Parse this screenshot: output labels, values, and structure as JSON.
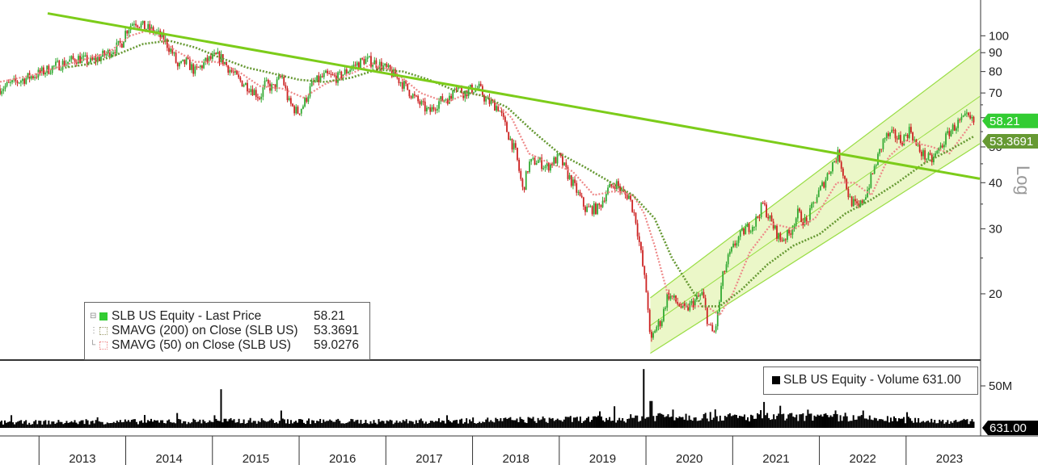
{
  "chart_data": [
    {
      "type": "candlestick",
      "title": "",
      "y_scale": "log",
      "ylim": [
        13.5,
        125
      ],
      "y_ticks": [
        "20",
        "30",
        "40",
        "50",
        "60",
        "70",
        "80",
        "90",
        "100"
      ],
      "x_ticks": [
        "2013",
        "2014",
        "2015",
        "2016",
        "2017",
        "2018",
        "2019",
        "2020",
        "2021",
        "2022",
        "2023"
      ],
      "xlim": [
        2012.55,
        2023.85
      ],
      "axis_watermark": "Log",
      "legend_position": "bottom-left",
      "series": [
        {
          "name": "SLB US Equity - Last Price",
          "last_value": "58.21",
          "color": "#33cc33",
          "anchors": [
            [
              2012.55,
              72
            ],
            [
              2012.8,
              76
            ],
            [
              2013.0,
              79
            ],
            [
              2013.2,
              83
            ],
            [
              2013.45,
              87
            ],
            [
              2013.6,
              85
            ],
            [
              2013.8,
              90
            ],
            [
              2013.95,
              95
            ],
            [
              2014.0,
              103
            ],
            [
              2014.1,
              110
            ],
            [
              2014.2,
              106
            ],
            [
              2014.35,
              102
            ],
            [
              2014.45,
              97
            ],
            [
              2014.55,
              89
            ],
            [
              2014.6,
              82
            ],
            [
              2014.7,
              85
            ],
            [
              2014.8,
              80
            ],
            [
              2014.95,
              86
            ],
            [
              2015.05,
              88
            ],
            [
              2015.1,
              87
            ],
            [
              2015.2,
              81
            ],
            [
              2015.3,
              76
            ],
            [
              2015.45,
              72
            ],
            [
              2015.55,
              68
            ],
            [
              2015.6,
              74
            ],
            [
              2015.7,
              72
            ],
            [
              2015.8,
              78
            ],
            [
              2015.88,
              66
            ],
            [
              2015.98,
              62
            ],
            [
              2016.05,
              65
            ],
            [
              2016.15,
              74
            ],
            [
              2016.3,
              78
            ],
            [
              2016.45,
              77
            ],
            [
              2016.6,
              82
            ],
            [
              2016.75,
              86
            ],
            [
              2016.85,
              85
            ],
            [
              2016.95,
              83
            ],
            [
              2017.05,
              80
            ],
            [
              2017.2,
              74
            ],
            [
              2017.35,
              67
            ],
            [
              2017.5,
              62
            ],
            [
              2017.6,
              66
            ],
            [
              2017.7,
              68
            ],
            [
              2017.75,
              67
            ],
            [
              2017.78,
              75
            ],
            [
              2017.82,
              73
            ],
            [
              2017.9,
              70
            ],
            [
              2018.0,
              72
            ],
            [
              2018.08,
              72
            ],
            [
              2018.15,
              67
            ],
            [
              2018.3,
              64
            ],
            [
              2018.4,
              55
            ],
            [
              2018.5,
              48
            ],
            [
              2018.58,
              38
            ],
            [
              2018.65,
              45
            ],
            [
              2018.75,
              46
            ],
            [
              2018.85,
              44
            ],
            [
              2019.0,
              47
            ],
            [
              2019.1,
              42
            ],
            [
              2019.2,
              38
            ],
            [
              2019.3,
              34
            ],
            [
              2019.45,
              34
            ],
            [
              2019.55,
              38
            ],
            [
              2019.65,
              40
            ],
            [
              2019.75,
              37
            ],
            [
              2019.8,
              37
            ],
            [
              2019.88,
              32
            ],
            [
              2019.95,
              25
            ],
            [
              2020.02,
              19
            ],
            [
              2020.05,
              14.5
            ],
            [
              2020.1,
              16
            ],
            [
              2020.18,
              17
            ],
            [
              2020.25,
              20
            ],
            [
              2020.35,
              19
            ],
            [
              2020.45,
              18
            ],
            [
              2020.55,
              19
            ],
            [
              2020.65,
              20
            ],
            [
              2020.72,
              16.5
            ],
            [
              2020.78,
              15.5
            ],
            [
              2020.82,
              17
            ],
            [
              2020.88,
              22
            ],
            [
              2020.95,
              25
            ],
            [
              2021.05,
              28
            ],
            [
              2021.15,
              30
            ],
            [
              2021.25,
              31
            ],
            [
              2021.35,
              35
            ],
            [
              2021.45,
              31
            ],
            [
              2021.55,
              28
            ],
            [
              2021.65,
              29
            ],
            [
              2021.75,
              33
            ],
            [
              2021.85,
              31
            ],
            [
              2021.95,
              36
            ],
            [
              2022.05,
              40
            ],
            [
              2022.15,
              45
            ],
            [
              2022.22,
              48
            ],
            [
              2022.28,
              42
            ],
            [
              2022.35,
              36
            ],
            [
              2022.45,
              34
            ],
            [
              2022.55,
              38
            ],
            [
              2022.65,
              45
            ],
            [
              2022.75,
              53
            ],
            [
              2022.85,
              54
            ],
            [
              2022.95,
              52
            ],
            [
              2023.05,
              56
            ],
            [
              2023.12,
              50
            ],
            [
              2023.22,
              47
            ],
            [
              2023.3,
              46
            ],
            [
              2023.4,
              50
            ],
            [
              2023.5,
              55
            ],
            [
              2023.6,
              58
            ],
            [
              2023.7,
              60
            ],
            [
              2023.78,
              58.21
            ]
          ]
        },
        {
          "name": "SMAVG (200) on Close (SLB US)",
          "last_value": "53.3691",
          "color": "#669933",
          "anchors": [
            [
              2013.3,
              82
            ],
            [
              2013.6,
              84
            ],
            [
              2013.9,
              89
            ],
            [
              2014.2,
              95
            ],
            [
              2014.5,
              97
            ],
            [
              2014.8,
              93
            ],
            [
              2015.1,
              87
            ],
            [
              2015.4,
              82
            ],
            [
              2015.7,
              79
            ],
            [
              2016.0,
              76
            ],
            [
              2016.3,
              75
            ],
            [
              2016.6,
              77
            ],
            [
              2016.9,
              81
            ],
            [
              2017.2,
              80
            ],
            [
              2017.5,
              76
            ],
            [
              2017.8,
              71
            ],
            [
              2018.1,
              69
            ],
            [
              2018.4,
              64
            ],
            [
              2018.7,
              55
            ],
            [
              2019.0,
              48
            ],
            [
              2019.3,
              44
            ],
            [
              2019.6,
              40
            ],
            [
              2019.85,
              37
            ],
            [
              2020.1,
              32
            ],
            [
              2020.3,
              25
            ],
            [
              2020.5,
              21
            ],
            [
              2020.65,
              18.5
            ],
            [
              2020.85,
              18.5
            ],
            [
              2021.1,
              20.5
            ],
            [
              2021.4,
              24
            ],
            [
              2021.7,
              27
            ],
            [
              2022.0,
              29
            ],
            [
              2022.3,
              33
            ],
            [
              2022.6,
              36
            ],
            [
              2022.9,
              40
            ],
            [
              2023.2,
              45
            ],
            [
              2023.5,
              49
            ],
            [
              2023.78,
              53.37
            ]
          ]
        },
        {
          "name": "SMAVG (50) on Close (SLB US)",
          "last_value": "59.0276",
          "color": "#ee8888",
          "anchors": [
            [
              2012.55,
              75
            ],
            [
              2012.9,
              78
            ],
            [
              2013.2,
              82
            ],
            [
              2013.5,
              86
            ],
            [
              2013.8,
              90
            ],
            [
              2014.05,
              100
            ],
            [
              2014.3,
              104
            ],
            [
              2014.55,
              92
            ],
            [
              2014.8,
              85
            ],
            [
              2015.05,
              85
            ],
            [
              2015.3,
              80
            ],
            [
              2015.55,
              73
            ],
            [
              2015.8,
              72
            ],
            [
              2016.05,
              68
            ],
            [
              2016.3,
              74
            ],
            [
              2016.6,
              79
            ],
            [
              2016.85,
              84
            ],
            [
              2017.1,
              80
            ],
            [
              2017.4,
              70
            ],
            [
              2017.7,
              66
            ],
            [
              2017.95,
              70
            ],
            [
              2018.2,
              68
            ],
            [
              2018.45,
              60
            ],
            [
              2018.65,
              48
            ],
            [
              2018.9,
              45
            ],
            [
              2019.15,
              43
            ],
            [
              2019.4,
              37
            ],
            [
              2019.65,
              38
            ],
            [
              2019.85,
              37
            ],
            [
              2019.98,
              33
            ],
            [
              2020.1,
              27
            ],
            [
              2020.25,
              20
            ],
            [
              2020.45,
              18.5
            ],
            [
              2020.7,
              18.5
            ],
            [
              2020.85,
              17.5
            ],
            [
              2021.0,
              20
            ],
            [
              2021.2,
              26
            ],
            [
              2021.45,
              31
            ],
            [
              2021.7,
              30
            ],
            [
              2021.95,
              32
            ],
            [
              2022.2,
              40
            ],
            [
              2022.4,
              40
            ],
            [
              2022.6,
              37
            ],
            [
              2022.8,
              47
            ],
            [
              2023.0,
              52
            ],
            [
              2023.3,
              50
            ],
            [
              2023.5,
              48
            ],
            [
              2023.78,
              59.03
            ]
          ]
        }
      ],
      "trendline": {
        "color": "#7ccc1a",
        "points": [
          [
            2013.1,
            115
          ],
          [
            2023.85,
            41
          ]
        ]
      },
      "channel": {
        "fill": "#ebf7c8",
        "stroke": "#99dd44",
        "lower": [
          [
            2020.05,
            13.8
          ],
          [
            2023.85,
            51
          ]
        ],
        "upper": [
          [
            2020.05,
            19.5
          ],
          [
            2023.85,
            92
          ]
        ]
      }
    },
    {
      "type": "bar",
      "name": "SLB US Equity - Volume 631.00",
      "ylim": [
        0,
        75
      ],
      "y_ticks": [
        "50M"
      ],
      "last_value": "631.00",
      "color": "#000000",
      "spikes": [
        [
          2015.1,
          46
        ],
        [
          2019.98,
          70
        ],
        [
          2020.06,
          32
        ],
        [
          2020.8,
          22
        ],
        [
          2022.3,
          18
        ],
        [
          2017.7,
          15
        ],
        [
          2015.02,
          15
        ],
        [
          2021.9,
          17
        ]
      ],
      "baseline": [
        [
          2012.55,
          6
        ],
        [
          2014.0,
          7
        ],
        [
          2015.5,
          8
        ],
        [
          2017.0,
          7
        ],
        [
          2018.5,
          9
        ],
        [
          2019.7,
          10
        ],
        [
          2020.2,
          14
        ],
        [
          2021.0,
          12
        ],
        [
          2022.0,
          12
        ],
        [
          2023.0,
          9
        ],
        [
          2023.78,
          7
        ]
      ]
    }
  ],
  "legend": {
    "rows": [
      {
        "label": "SLB US Equity - Last Price",
        "value": "58.21",
        "swatch": "#33cc33"
      },
      {
        "label": "SMAVG (200)  on Close (SLB US)",
        "value": "53.3691",
        "swatch": "#9e9e6e"
      },
      {
        "label": "SMAVG (50)  on Close (SLB US)",
        "value": "59.0276",
        "swatch": "#ee8888"
      }
    ]
  },
  "volume_legend": {
    "label": "SLB US Equity - Volume 631.00"
  },
  "right_tags": {
    "price": {
      "text": "58.21",
      "bg": "#33cc33"
    },
    "sma200": {
      "text": "53.3691",
      "bg": "#669933"
    },
    "volume": {
      "text": "631.00",
      "bg": "#000000"
    }
  },
  "colors": {
    "up": "#33aa33",
    "down": "#cc2222",
    "grid": "#dddddd"
  }
}
